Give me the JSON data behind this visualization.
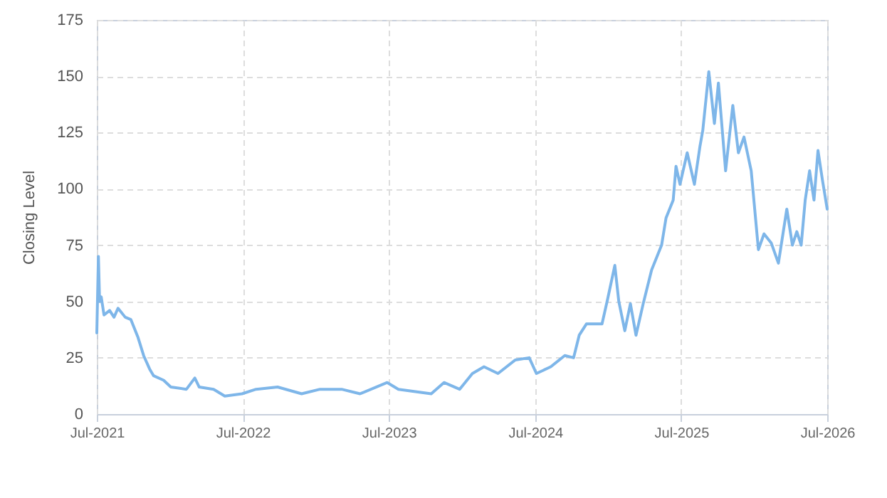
{
  "chart_data": {
    "type": "line",
    "ylabel": "Closing Level",
    "x": [
      "2021-07-01",
      "2021-07-05",
      "2021-07-08",
      "2021-07-12",
      "2021-07-19",
      "2021-08-02",
      "2021-08-13",
      "2021-08-23",
      "2021-09-10",
      "2021-09-24",
      "2021-10-12",
      "2021-10-26",
      "2021-11-10",
      "2021-11-20",
      "2021-12-15",
      "2022-01-02",
      "2022-02-10",
      "2022-03-03",
      "2022-03-14",
      "2022-04-19",
      "2022-05-17",
      "2022-06-29",
      "2022-08-03",
      "2022-09-26",
      "2022-11-25",
      "2023-01-10",
      "2023-03-05",
      "2023-04-20",
      "2023-06-27",
      "2023-07-25",
      "2023-10-15",
      "2023-11-16",
      "2023-12-25",
      "2024-01-26",
      "2024-02-24",
      "2024-03-30",
      "2024-05-12",
      "2024-06-16",
      "2024-07-04",
      "2024-08-09",
      "2024-09-13",
      "2024-10-05",
      "2024-10-19",
      "2024-11-06",
      "2024-12-15",
      "2024-12-29",
      "2025-01-16",
      "2025-01-26",
      "2025-02-10",
      "2025-02-24",
      "2025-03-10",
      "2025-03-28",
      "2025-04-18",
      "2025-05-13",
      "2025-05-24",
      "2025-06-11",
      "2025-06-18",
      "2025-06-28",
      "2025-07-16",
      "2025-08-03",
      "2025-08-17",
      "2025-08-24",
      "2025-09-08",
      "2025-09-22",
      "2025-10-02",
      "2025-10-20",
      "2025-11-07",
      "2025-11-21",
      "2025-12-05",
      "2025-12-23",
      "2026-01-10",
      "2026-01-24",
      "2026-02-11",
      "2026-03-01",
      "2026-03-22",
      "2026-04-05",
      "2026-04-16",
      "2026-04-27",
      "2026-05-07",
      "2026-05-18",
      "2026-05-29",
      "2026-06-08",
      "2026-06-19",
      "2026-07-01"
    ],
    "series": [
      {
        "color": "#7eb6e9",
        "values": [
          36,
          70,
          50,
          52,
          44,
          46,
          43,
          47,
          43,
          42,
          34,
          26,
          20,
          17,
          15,
          12,
          11,
          16,
          12,
          11,
          8,
          9,
          11,
          12,
          9,
          11,
          11,
          9,
          14,
          11,
          9,
          14,
          11,
          18,
          21,
          18,
          24,
          25,
          18,
          21,
          26,
          25,
          35,
          40,
          40,
          51,
          66,
          50,
          37,
          49,
          35,
          49,
          64,
          75,
          87,
          95,
          110,
          102,
          116,
          102,
          119,
          126,
          152,
          129,
          147,
          108,
          137,
          116,
          123,
          108,
          73,
          80,
          76,
          67,
          91,
          75,
          81,
          75,
          95,
          108,
          95,
          117,
          104,
          91
        ]
      }
    ],
    "xlim": [
      "2021-07-01",
      "2026-07-01"
    ],
    "xticks": [
      {
        "value": "2021-07-01",
        "label": "Jul-2021"
      },
      {
        "value": "2022-07-01",
        "label": "Jul-2022"
      },
      {
        "value": "2023-07-01",
        "label": "Jul-2023"
      },
      {
        "value": "2024-07-01",
        "label": "Jul-2024"
      },
      {
        "value": "2025-07-01",
        "label": "Jul-2025"
      },
      {
        "value": "2026-07-01",
        "label": "Jul-2026"
      }
    ],
    "ylim": [
      0,
      175
    ],
    "yticks": [
      0,
      25,
      50,
      75,
      100,
      125,
      150,
      175
    ],
    "grid": true,
    "marker": "none",
    "line_style": "solid"
  }
}
